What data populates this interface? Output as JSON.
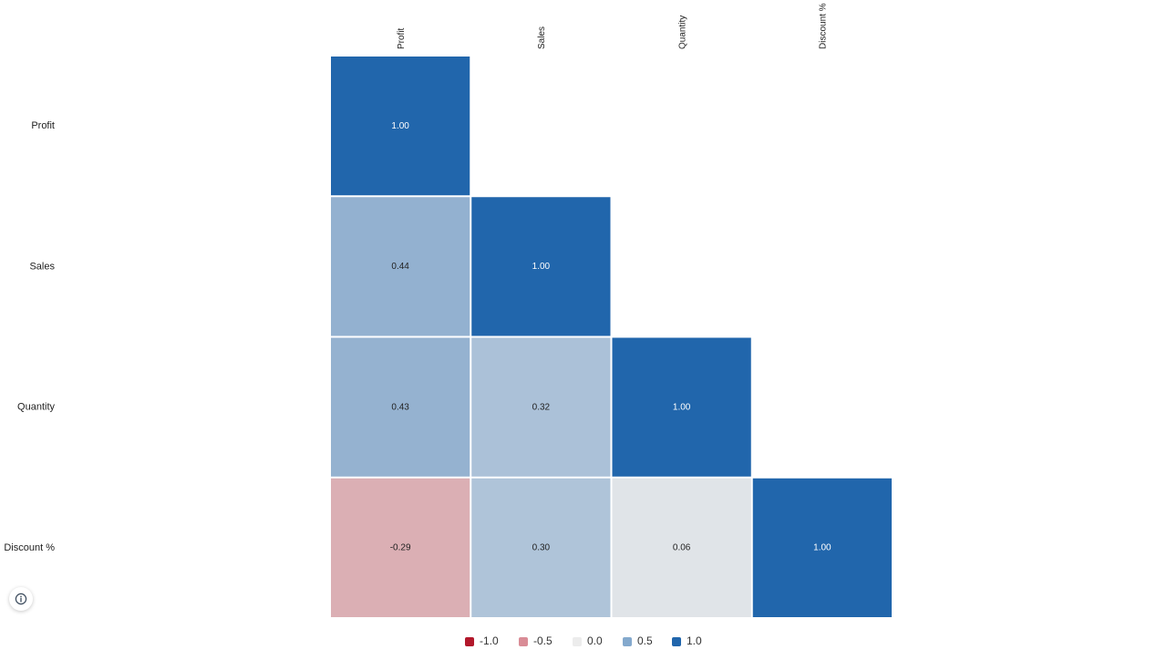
{
  "chart_data": {
    "type": "heatmap",
    "title": "",
    "rows": [
      "Profit",
      "Sales",
      "Quantity",
      "Discount %"
    ],
    "columns": [
      "Profit",
      "Sales",
      "Quantity",
      "Discount %"
    ],
    "triangle": "lower",
    "values": [
      [
        1.0,
        null,
        null,
        null
      ],
      [
        0.44,
        1.0,
        null,
        null
      ],
      [
        0.43,
        0.32,
        1.0,
        null
      ],
      [
        -0.29,
        0.3,
        0.06,
        1.0
      ]
    ],
    "value_labels": [
      [
        "1.00",
        "",
        "",
        ""
      ],
      [
        "0.44",
        "1.00",
        "",
        ""
      ],
      [
        "0.43",
        "0.32",
        "1.00",
        ""
      ],
      [
        "-0.29",
        "0.30",
        "0.06",
        "1.00"
      ]
    ],
    "color_scale": {
      "min": -1.0,
      "max": 1.0,
      "negative_color": "#b2182b",
      "neutral_color": "#ececec",
      "positive_color": "#2166ac"
    },
    "legend": {
      "placement": "bottom",
      "entries": [
        {
          "label": "-1.0",
          "value": -1.0,
          "color": "#b2182b"
        },
        {
          "label": "-0.5",
          "value": -0.5,
          "color": "#d98c96"
        },
        {
          "label": "0.0",
          "value": 0.0,
          "color": "#ececec"
        },
        {
          "label": "0.5",
          "value": 0.5,
          "color": "#84a9cd"
        },
        {
          "label": "1.0",
          "value": 1.0,
          "color": "#2166ac"
        }
      ]
    }
  },
  "controls": {
    "info_icon": "info-icon"
  }
}
